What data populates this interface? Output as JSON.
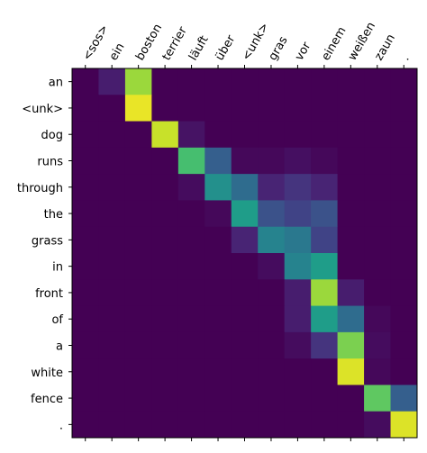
{
  "chart_data": {
    "type": "heatmap",
    "colormap": "viridis",
    "x_categories": [
      "<sos>",
      "ein",
      "boston",
      "terrier",
      "läuft",
      "über",
      "<unk>",
      "gras",
      "vor",
      "einem",
      "weißen",
      "zaun",
      "."
    ],
    "y_categories": [
      "an",
      "<unk>",
      "dog",
      "runs",
      "through",
      "the",
      "grass",
      "in",
      "front",
      "of",
      "a",
      "white",
      "fence",
      "."
    ],
    "values": [
      [
        0,
        0.08,
        0.85,
        0,
        0,
        0,
        0,
        0,
        0,
        0,
        0,
        0,
        0
      ],
      [
        0,
        0,
        0.97,
        0,
        0,
        0,
        0,
        0,
        0,
        0,
        0,
        0,
        0
      ],
      [
        0,
        0,
        0,
        0.92,
        0.05,
        0,
        0,
        0,
        0,
        0,
        0,
        0,
        0
      ],
      [
        0,
        0,
        0,
        0,
        0.7,
        0.3,
        0.02,
        0.02,
        0.04,
        0.02,
        0,
        0,
        0
      ],
      [
        0,
        0,
        0,
        0,
        0.03,
        0.5,
        0.35,
        0.1,
        0.15,
        0.1,
        0,
        0,
        0
      ],
      [
        0,
        0,
        0,
        0,
        0,
        0.02,
        0.55,
        0.25,
        0.2,
        0.25,
        0,
        0,
        0
      ],
      [
        0,
        0,
        0,
        0,
        0,
        0,
        0.1,
        0.45,
        0.4,
        0.2,
        0,
        0,
        0
      ],
      [
        0,
        0,
        0,
        0,
        0,
        0,
        0,
        0.03,
        0.45,
        0.55,
        0,
        0,
        0
      ],
      [
        0,
        0,
        0,
        0,
        0,
        0,
        0,
        0,
        0.08,
        0.85,
        0.08,
        0,
        0
      ],
      [
        0,
        0,
        0,
        0,
        0,
        0,
        0,
        0,
        0.08,
        0.55,
        0.35,
        0.02,
        0
      ],
      [
        0,
        0,
        0,
        0,
        0,
        0,
        0,
        0,
        0.03,
        0.15,
        0.8,
        0.03,
        0
      ],
      [
        0,
        0,
        0,
        0,
        0,
        0,
        0,
        0,
        0,
        0,
        0.95,
        0.02,
        0
      ],
      [
        0,
        0,
        0,
        0,
        0,
        0,
        0,
        0,
        0,
        0,
        0,
        0.75,
        0.3
      ],
      [
        0,
        0,
        0,
        0,
        0,
        0,
        0,
        0,
        0,
        0,
        0,
        0.03,
        0.95
      ]
    ]
  }
}
